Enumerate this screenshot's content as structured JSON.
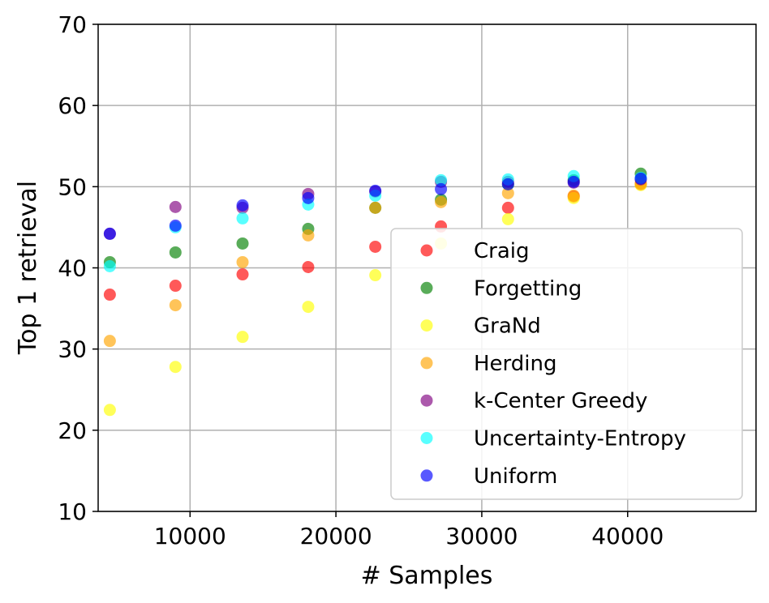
{
  "chart_data": {
    "type": "scatter",
    "xlabel": "# Samples",
    "ylabel": "Top 1 retrieval",
    "xlim": [
      3700,
      48800
    ],
    "ylim": [
      10,
      70
    ],
    "xticks": [
      10000,
      20000,
      30000,
      40000
    ],
    "xtick_labels": [
      "10000",
      "20000",
      "30000",
      "40000"
    ],
    "yticks": [
      10,
      20,
      30,
      40,
      50,
      60,
      70
    ],
    "ytick_labels": [
      "10",
      "20",
      "30",
      "40",
      "50",
      "60",
      "70"
    ],
    "grid": true,
    "legend_position": "lower-right",
    "x": [
      4500,
      9000,
      13600,
      18100,
      22700,
      27200,
      31800,
      36300,
      40900
    ],
    "series": [
      {
        "name": "Craig",
        "color": "#ff0000",
        "values": [
          36.7,
          37.8,
          39.2,
          40.1,
          42.6,
          45.1,
          47.4,
          48.8,
          50.3
        ]
      },
      {
        "name": "Forgetting",
        "color": "#008000",
        "values": [
          40.7,
          41.9,
          43.0,
          44.8,
          47.4,
          48.4,
          50.3,
          50.8,
          51.6
        ]
      },
      {
        "name": "GraNd",
        "color": "#ffff00",
        "values": [
          22.5,
          27.8,
          31.5,
          35.2,
          39.1,
          43.0,
          46.0,
          48.6,
          50.2
        ]
      },
      {
        "name": "Herding",
        "color": "#ffa500",
        "values": [
          31.0,
          35.4,
          40.7,
          44.0,
          47.4,
          48.1,
          49.2,
          48.9,
          50.4
        ]
      },
      {
        "name": "k-Center Greedy",
        "color": "#800080",
        "values": [
          44.2,
          47.5,
          47.4,
          49.1,
          49.4,
          50.6,
          50.6,
          50.5,
          50.9
        ]
      },
      {
        "name": "Uncertainty-Entropy",
        "color": "#00ffff",
        "values": [
          40.2,
          45.0,
          46.1,
          47.8,
          48.9,
          50.8,
          50.9,
          51.3,
          51.1
        ]
      },
      {
        "name": "Uniform",
        "color": "#0000ff",
        "values": [
          44.2,
          45.2,
          47.7,
          48.6,
          49.5,
          49.7,
          50.3,
          50.6,
          51.0
        ]
      }
    ]
  }
}
